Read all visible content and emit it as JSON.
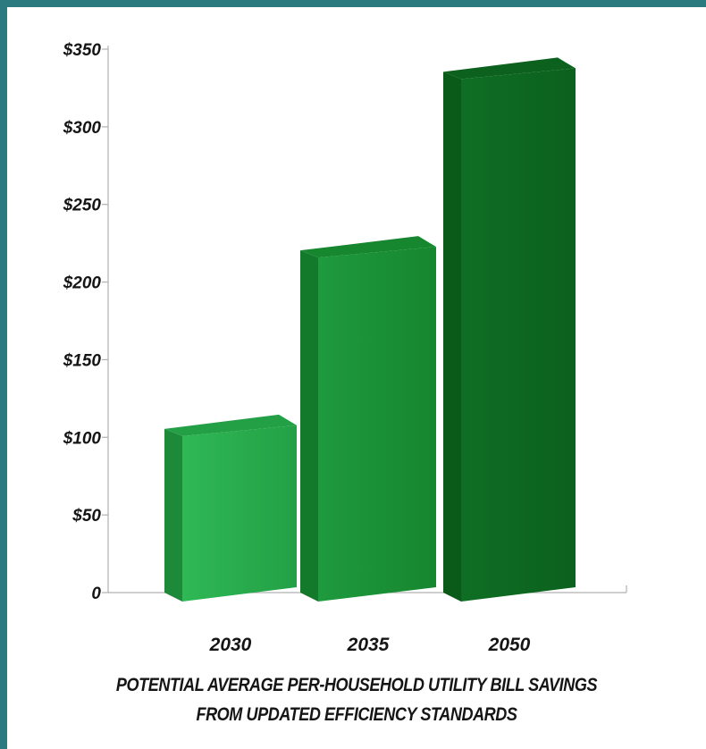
{
  "chart_data": {
    "type": "bar",
    "categories": [
      "2030",
      "2035",
      "2050"
    ],
    "values": [
      110,
      225,
      340
    ],
    "ylim": [
      0,
      350
    ],
    "yticks": [
      0,
      50,
      100,
      150,
      200,
      250,
      300,
      350
    ],
    "ytick_labels": [
      "0",
      "$50",
      "$100",
      "$150",
      "$200",
      "$250",
      "$300",
      "$350"
    ],
    "title": "",
    "xlabel": "",
    "ylabel": "",
    "caption_lines": [
      "POTENTIAL AVERAGE PER-HOUSEHOLD UTILITY BILL SAVINGS",
      "FROM UPDATED EFFICIENCY STANDARDS"
    ],
    "grid": false,
    "legend": "none",
    "bar_colors": [
      "#2fb855",
      "#1f9a3e",
      "#0f6e24"
    ],
    "bar_side_colors": [
      "#1d8a3a",
      "#137a2c",
      "#0a5a1a"
    ],
    "bar_top_colors": [
      "#23a046",
      "#16862f",
      "#0b611d"
    ]
  }
}
